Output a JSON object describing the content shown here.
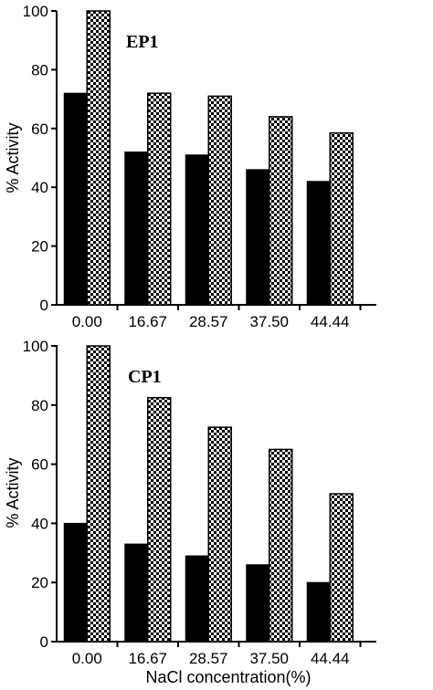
{
  "chart_data": [
    {
      "type": "bar",
      "title": "EP1",
      "ylabel": "% Activity",
      "xlabel": "",
      "categories": [
        "0.00",
        "16.67",
        "28.57",
        "37.50",
        "44.44"
      ],
      "ylim": [
        0,
        100
      ],
      "yticks": [
        "0",
        "20",
        "40",
        "60",
        "80",
        "100"
      ],
      "series": [
        {
          "style": "solid",
          "color": "#000000",
          "values": [
            72,
            52,
            51,
            46,
            42
          ]
        },
        {
          "style": "checkered",
          "color": "#000000",
          "values": [
            100,
            72,
            71,
            64,
            58.5
          ]
        }
      ]
    },
    {
      "type": "bar",
      "title": "CP1",
      "ylabel": "% Activity",
      "xlabel": "NaCl concentration(%)",
      "categories": [
        "0.00",
        "16.67",
        "28.57",
        "37.50",
        "44.44"
      ],
      "ylim": [
        0,
        100
      ],
      "yticks": [
        "0",
        "20",
        "40",
        "60",
        "80",
        "100"
      ],
      "series": [
        {
          "style": "solid",
          "color": "#000000",
          "values": [
            40,
            33,
            29,
            26,
            20
          ]
        },
        {
          "style": "checkered",
          "color": "#000000",
          "values": [
            100,
            82.5,
            72.5,
            65,
            50
          ]
        }
      ]
    }
  ]
}
